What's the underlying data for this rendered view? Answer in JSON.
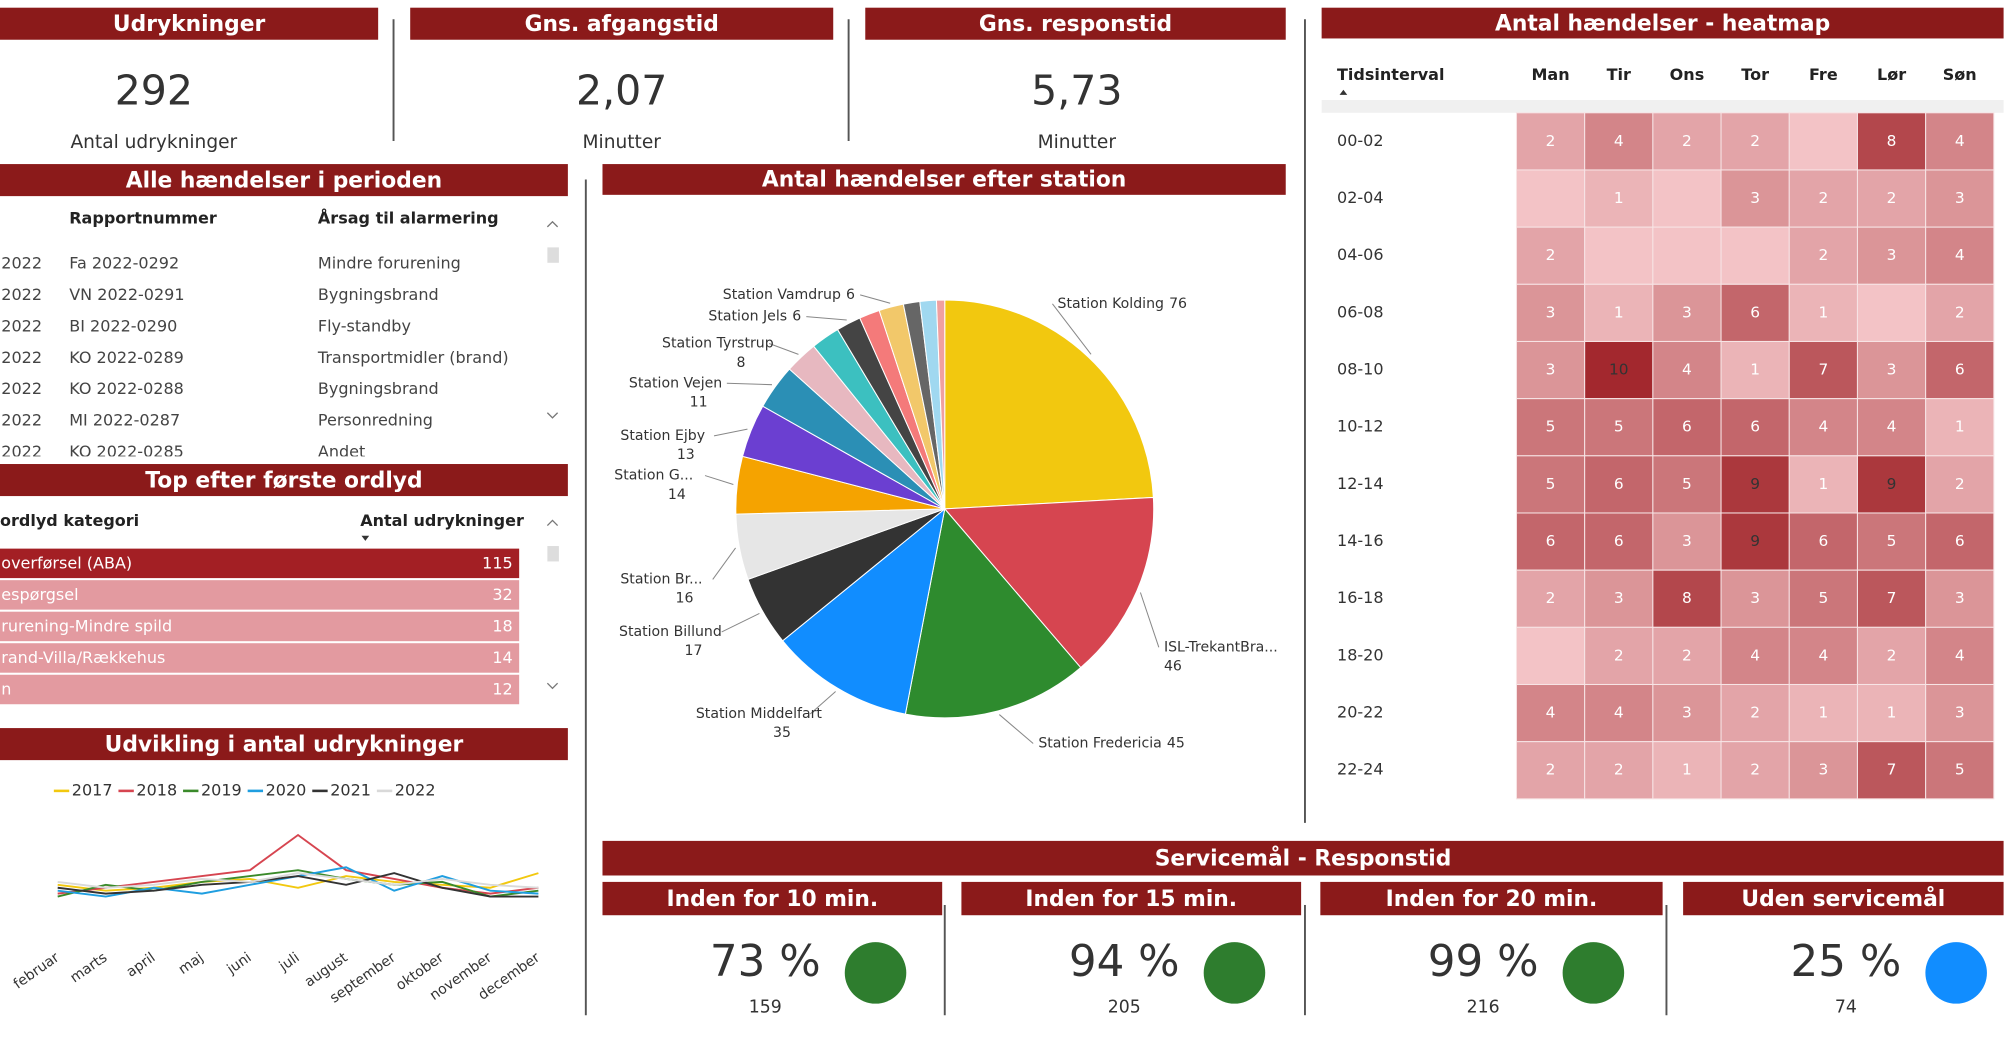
{
  "cards": [
    {
      "title": "Udrykninger",
      "value": "292",
      "caption": "Antal udrykninger"
    },
    {
      "title": "Gns. afgangstid",
      "value": "2,07",
      "caption": "Minutter"
    },
    {
      "title": "Gns. responstid",
      "value": "5,73",
      "caption": "Minutter"
    }
  ],
  "events_table": {
    "title": "Alle hændelser i perioden",
    "columns": [
      "Rapportnummer",
      "Årsag til alarmering"
    ],
    "rows": [
      {
        "date": "2022",
        "report": "Fa 2022-0292",
        "cause": "Mindre forurening"
      },
      {
        "date": "2022",
        "report": "VN 2022-0291",
        "cause": "Bygningsbrand"
      },
      {
        "date": "2022",
        "report": "BI 2022-0290",
        "cause": "Fly-standby"
      },
      {
        "date": "2022",
        "report": "KO 2022-0289",
        "cause": "Transportmidler (brand)"
      },
      {
        "date": "2022",
        "report": "KO 2022-0288",
        "cause": "Bygningsbrand"
      },
      {
        "date": "2022",
        "report": "MI 2022-0287",
        "cause": "Personredning"
      },
      {
        "date": "2022",
        "report": "KO 2022-0285",
        "cause": "Andet"
      }
    ]
  },
  "top_table": {
    "title": "Top efter første ordlyd",
    "columns": [
      "ordlyd kategori",
      "Antal udrykninger"
    ],
    "rows": [
      [
        " overførsel (ABA)",
        115
      ],
      [
        "espørgsel",
        32
      ],
      [
        "rurening-Mindre spild",
        18
      ],
      [
        "rand-Villa/Rækkehus",
        14
      ],
      [
        "n",
        12
      ]
    ]
  },
  "chart_data": [
    {
      "type": "line",
      "title": "Udvikling i antal udrykninger",
      "categories": [
        "februar",
        "marts",
        "april",
        "maj",
        "juni",
        "juli",
        "august",
        "september",
        "oktober",
        "november",
        "december"
      ],
      "ylim": [
        15,
        50
      ],
      "series": [
        {
          "name": "2017",
          "color": "#f2c80f",
          "values": [
            28,
            26,
            27,
            29,
            30,
            27,
            31,
            29,
            28,
            27,
            32
          ]
        },
        {
          "name": "2018",
          "color": "#d64550",
          "values": [
            25,
            27,
            29,
            31,
            33,
            45,
            33,
            30,
            27,
            25,
            27
          ]
        },
        {
          "name": "2019",
          "color": "#3a8a2a",
          "values": [
            24,
            28,
            26,
            29,
            31,
            33,
            30,
            28,
            29,
            24,
            26
          ]
        },
        {
          "name": "2020",
          "color": "#1f9ee0",
          "values": [
            26,
            24,
            27,
            25,
            28,
            31,
            34,
            26,
            31,
            26,
            25
          ]
        },
        {
          "name": "2021",
          "color": "#333333",
          "values": [
            27,
            25,
            26,
            28,
            29,
            31,
            28,
            32,
            27,
            24,
            24
          ]
        },
        {
          "name": "2022",
          "color": "#d9d9d9",
          "values": [
            29,
            27,
            28,
            30,
            29,
            32,
            30,
            28,
            30,
            28,
            27
          ]
        }
      ]
    },
    {
      "type": "pie",
      "title": "Antal hændelser efter station",
      "categories": [
        "Station Kolding",
        "ISL-TrekantBra...",
        "Station Fredericia",
        "Station Middelfart",
        "Station Billund",
        "Station Br...",
        "Station G...",
        "Station Ejby",
        "Station Vejen",
        "Station Tyrstrup",
        null,
        "Station Jels",
        null,
        "Station Vamdrup",
        null,
        null,
        null
      ],
      "values": [
        76,
        46,
        45,
        35,
        17,
        16,
        14,
        13,
        11,
        8,
        7,
        6,
        5,
        6,
        4,
        4,
        2
      ],
      "colors": [
        "#f2c80f",
        "#d64550",
        "#2e8b2e",
        "#118dff",
        "#333333",
        "#e6e6e6",
        "#f5a300",
        "#6b3fd1",
        "#2b8fb5",
        "#e7b8c0",
        "#3cc0c0",
        "#444444",
        "#f47a7a",
        "#f2c86a",
        "#666666",
        "#a0d8f0",
        "#f0a0a0"
      ]
    },
    {
      "type": "heatmap",
      "title": "Antal hændelser - heatmap",
      "row_header": "Tidsinterval",
      "x": [
        "Man",
        "Tir",
        "Ons",
        "Tor",
        "Fre",
        "Lør",
        "Søn"
      ],
      "y": [
        "00-02",
        "02-04",
        "04-06",
        "06-08",
        "08-10",
        "10-12",
        "12-14",
        "14-16",
        "16-18",
        "18-20",
        "20-22",
        "22-24"
      ],
      "values": [
        [
          2,
          4,
          2,
          2,
          null,
          8,
          4
        ],
        [
          null,
          1,
          null,
          3,
          2,
          2,
          3
        ],
        [
          2,
          null,
          null,
          null,
          2,
          3,
          4
        ],
        [
          3,
          1,
          3,
          6,
          1,
          null,
          2
        ],
        [
          3,
          10,
          4,
          1,
          7,
          3,
          6
        ],
        [
          5,
          5,
          6,
          6,
          4,
          4,
          1
        ],
        [
          5,
          6,
          5,
          9,
          1,
          9,
          2
        ],
        [
          6,
          6,
          3,
          9,
          6,
          5,
          6
        ],
        [
          2,
          3,
          8,
          3,
          5,
          7,
          3
        ],
        [
          null,
          2,
          2,
          4,
          4,
          2,
          4
        ],
        [
          4,
          4,
          3,
          2,
          1,
          1,
          3
        ],
        [
          2,
          2,
          1,
          2,
          3,
          7,
          5
        ]
      ],
      "colors": [
        "#f3c3c6",
        "#a3282e"
      ]
    }
  ],
  "service": {
    "title": "Servicemål - Responstid",
    "cards": [
      {
        "title": "Inden for 10 min.",
        "percent": "73 %",
        "count": 159,
        "color": "#2e7d2e"
      },
      {
        "title": "Inden for 15 min.",
        "percent": "94 %",
        "count": 205,
        "color": "#2e7d2e"
      },
      {
        "title": "Inden for 20 min.",
        "percent": "99 %",
        "count": 216,
        "color": "#2e7d2e"
      },
      {
        "title": "Uden servicemål",
        "percent": "25 %",
        "count": 74,
        "color": "#118dff"
      }
    ]
  }
}
